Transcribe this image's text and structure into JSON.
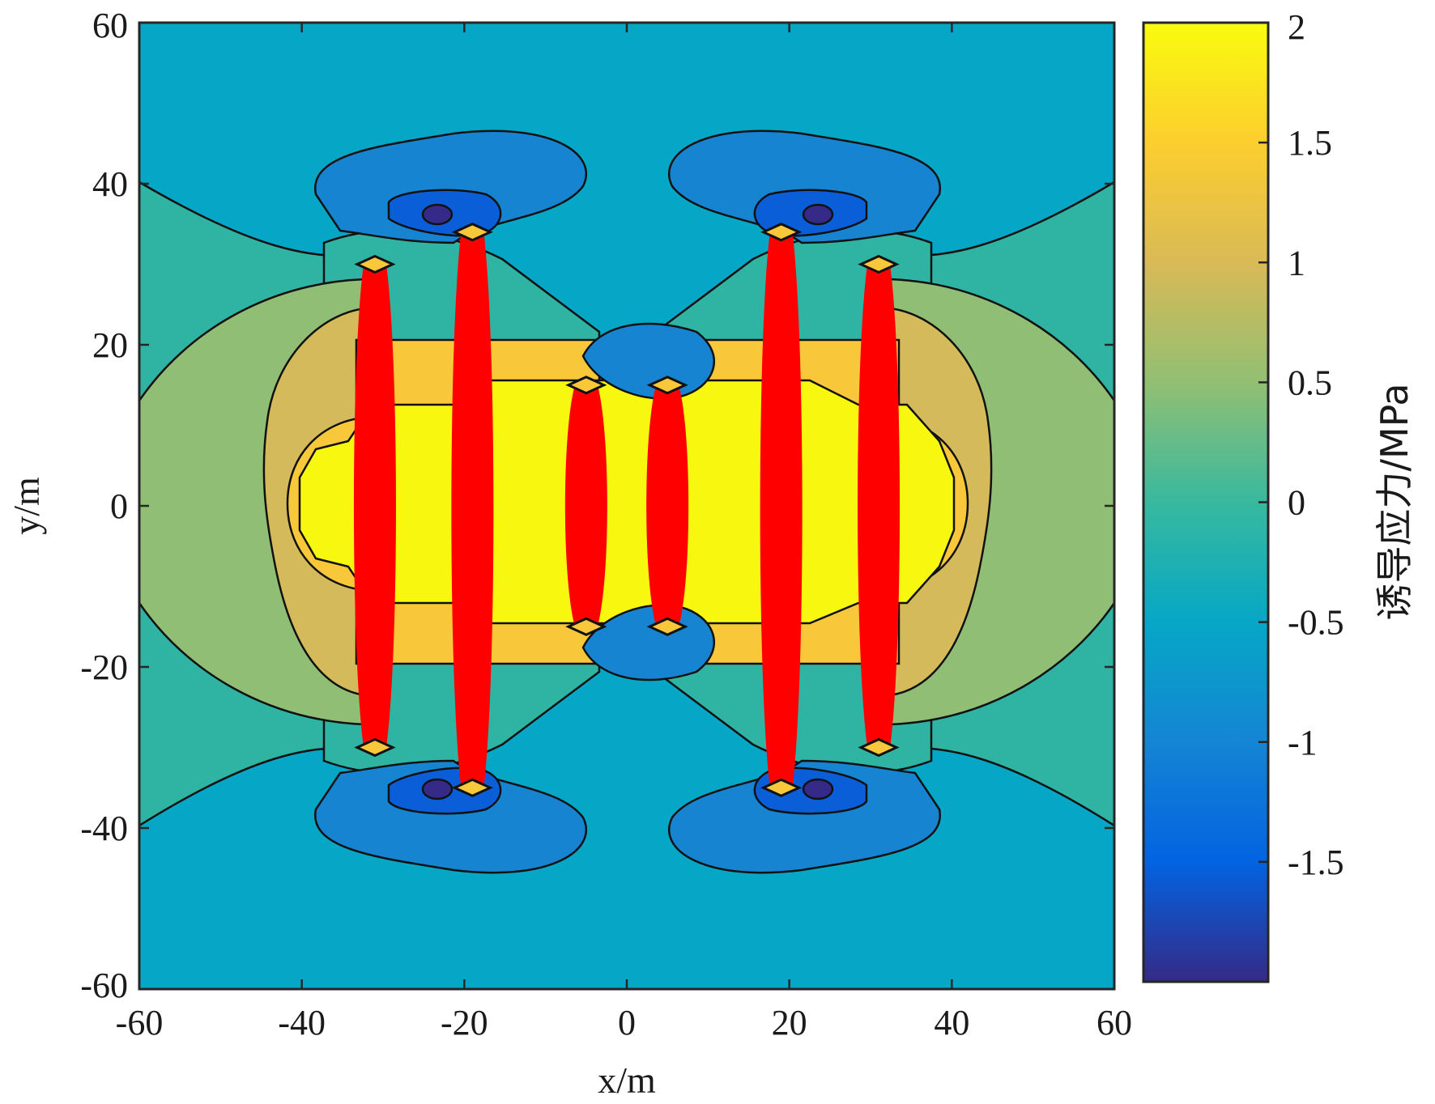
{
  "chart_data": {
    "type": "heatmap",
    "subtype": "filled-contour",
    "title": "",
    "xlabel": "x/m",
    "ylabel": "y/m",
    "xlim": [
      -60,
      60
    ],
    "ylim": [
      -60,
      60
    ],
    "x_ticks": [
      -60,
      -40,
      -20,
      0,
      20,
      40,
      60
    ],
    "y_ticks": [
      -60,
      -40,
      -20,
      0,
      20,
      40,
      60
    ],
    "x_tick_labels": [
      "-60",
      "-40",
      "-20",
      "0",
      "20",
      "40",
      "60"
    ],
    "y_tick_labels": [
      "-60",
      "-40",
      "-20",
      "0",
      "20",
      "40",
      "60"
    ],
    "colorbar": {
      "label": "诱导应力/MPa",
      "range": [
        -2,
        2
      ],
      "ticks": [
        2,
        1.5,
        1,
        0.5,
        0,
        -0.5,
        -1,
        -1.5
      ],
      "tick_labels": [
        "2",
        "1.5",
        "1",
        "0.5",
        "0",
        "-0.5",
        "-1",
        "-1.5"
      ],
      "colormap": "parula",
      "stops": [
        "#352a87",
        "#0363e1",
        "#1485d4",
        "#06a7c6",
        "#38b99e",
        "#92bf73",
        "#d9ba56",
        "#fcce2e",
        "#f9fb0e"
      ]
    },
    "saturated_color": "#ff0000",
    "fractures": [
      {
        "x": -31,
        "y_range": [
          -30,
          30
        ]
      },
      {
        "x": -19,
        "y_range": [
          -35,
          34
        ]
      },
      {
        "x": -5,
        "y_range": [
          -15,
          15
        ]
      },
      {
        "x": 5,
        "y_range": [
          -15,
          15
        ]
      },
      {
        "x": 19,
        "y_range": [
          -35,
          34
        ]
      },
      {
        "x": 31,
        "y_range": [
          -30,
          30
        ]
      }
    ]
  }
}
